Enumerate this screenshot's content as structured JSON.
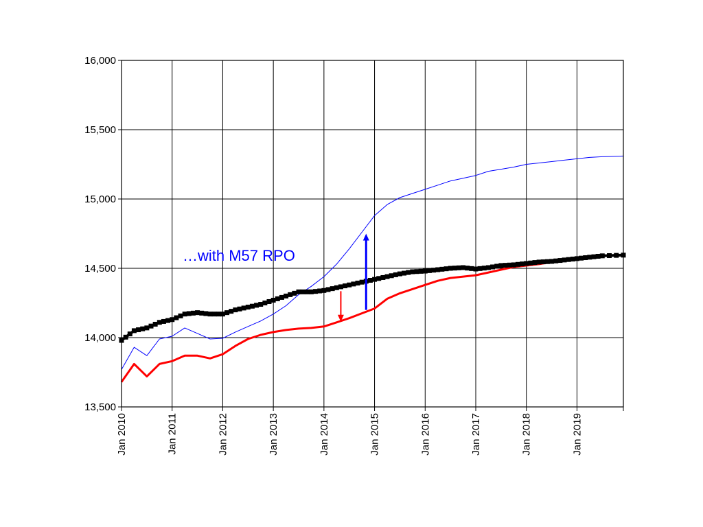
{
  "chart_data": {
    "type": "line",
    "title": "",
    "xlabel": "",
    "ylabel": "",
    "ylim": [
      13500,
      16000
    ],
    "xlim": [
      "2010-01",
      "2019-12"
    ],
    "yticks": [
      13500,
      14000,
      14500,
      15000,
      15500,
      16000
    ],
    "ytick_labels": [
      "13,500",
      "14,000",
      "14,500",
      "15,000",
      "15,500",
      "16,000"
    ],
    "xticks": [
      "2010-01",
      "2011-01",
      "2012-01",
      "2013-01",
      "2014-01",
      "2015-01",
      "2016-01",
      "2017-01",
      "2018-01",
      "2019-01"
    ],
    "xtick_labels": [
      "Jan 2010",
      "Jan 2011",
      "Jan 2012",
      "Jan 2013",
      "Jan 2014",
      "Jan 2015",
      "Jan 2016",
      "Jan 2017",
      "Jan 2018",
      "Jan 2019"
    ],
    "grid": true,
    "legend": "none",
    "series": [
      {
        "color": "#000000",
        "style": "thick-square-markers",
        "x": [
          "2010-01",
          "2010-04",
          "2010-07",
          "2010-10",
          "2011-01",
          "2011-04",
          "2011-07",
          "2011-10",
          "2012-01",
          "2012-04",
          "2012-07",
          "2012-10",
          "2013-01",
          "2013-04",
          "2013-07",
          "2013-10",
          "2014-01",
          "2014-04",
          "2014-07",
          "2014-10",
          "2015-01",
          "2015-04",
          "2015-07",
          "2015-10",
          "2016-01",
          "2016-04",
          "2016-07",
          "2016-10",
          "2017-01",
          "2017-04",
          "2017-07",
          "2017-10",
          "2018-01",
          "2018-04",
          "2018-07",
          "2018-10",
          "2019-01",
          "2019-04",
          "2019-07",
          "2019-12"
        ],
        "values": [
          13980,
          14050,
          14070,
          14110,
          14130,
          14170,
          14180,
          14170,
          14170,
          14200,
          14220,
          14240,
          14270,
          14300,
          14330,
          14330,
          14340,
          14360,
          14380,
          14400,
          14420,
          14440,
          14460,
          14475,
          14480,
          14490,
          14500,
          14505,
          14495,
          14505,
          14520,
          14525,
          14535,
          14545,
          14550,
          14560,
          14570,
          14580,
          14590,
          14595
        ]
      },
      {
        "color": "#0000ff",
        "style": "thin-line",
        "x": [
          "2010-01",
          "2010-04",
          "2010-07",
          "2010-10",
          "2011-01",
          "2011-04",
          "2011-07",
          "2011-10",
          "2012-01",
          "2012-04",
          "2012-07",
          "2012-10",
          "2013-01",
          "2013-04",
          "2013-07",
          "2013-10",
          "2014-01",
          "2014-04",
          "2014-07",
          "2014-10",
          "2015-01",
          "2015-04",
          "2015-07",
          "2015-10",
          "2016-01",
          "2016-04",
          "2016-07",
          "2016-10",
          "2017-01",
          "2017-04",
          "2017-07",
          "2017-10",
          "2018-01",
          "2018-04",
          "2018-07",
          "2018-10",
          "2019-01",
          "2019-04",
          "2019-07",
          "2019-12"
        ],
        "values": [
          13770,
          13930,
          13870,
          13990,
          14010,
          14070,
          14030,
          13990,
          13995,
          14040,
          14080,
          14120,
          14170,
          14230,
          14310,
          14370,
          14440,
          14530,
          14640,
          14760,
          14880,
          14960,
          15010,
          15040,
          15070,
          15100,
          15130,
          15150,
          15170,
          15200,
          15215,
          15230,
          15250,
          15260,
          15270,
          15280,
          15290,
          15300,
          15305,
          15310
        ]
      },
      {
        "color": "#ff0000",
        "style": "medium-line",
        "x": [
          "2010-01",
          "2010-04",
          "2010-07",
          "2010-10",
          "2011-01",
          "2011-04",
          "2011-07",
          "2011-10",
          "2012-01",
          "2012-04",
          "2012-07",
          "2012-10",
          "2013-01",
          "2013-04",
          "2013-07",
          "2013-10",
          "2014-01",
          "2014-04",
          "2014-07",
          "2014-10",
          "2015-01",
          "2015-04",
          "2015-07",
          "2015-10",
          "2016-01",
          "2016-04",
          "2016-07",
          "2016-10",
          "2017-01",
          "2017-04",
          "2017-07",
          "2017-10",
          "2018-01",
          "2018-04",
          "2018-07",
          "2018-10",
          "2019-01",
          "2019-04",
          "2019-07",
          "2019-12"
        ],
        "values": [
          13680,
          13810,
          13720,
          13810,
          13830,
          13870,
          13870,
          13850,
          13880,
          13940,
          13990,
          14020,
          14040,
          14055,
          14065,
          14070,
          14080,
          14110,
          14140,
          14175,
          14210,
          14280,
          14320,
          14350,
          14380,
          14410,
          14430,
          14440,
          14450,
          14470,
          14490,
          14510,
          14520,
          14530,
          14545,
          14560,
          14570,
          14580,
          14590,
          14595
        ]
      }
    ],
    "annotations": [
      {
        "text": "…with M57 RPO",
        "color": "#0000ff"
      },
      {
        "type": "arrow-up",
        "color": "#0000ff",
        "x": "2014-11",
        "from": 14200,
        "to": 14750
      },
      {
        "type": "arrow-down",
        "color": "#ff0000",
        "x": "2014-05",
        "from": 14335,
        "to": 14115
      }
    ]
  }
}
